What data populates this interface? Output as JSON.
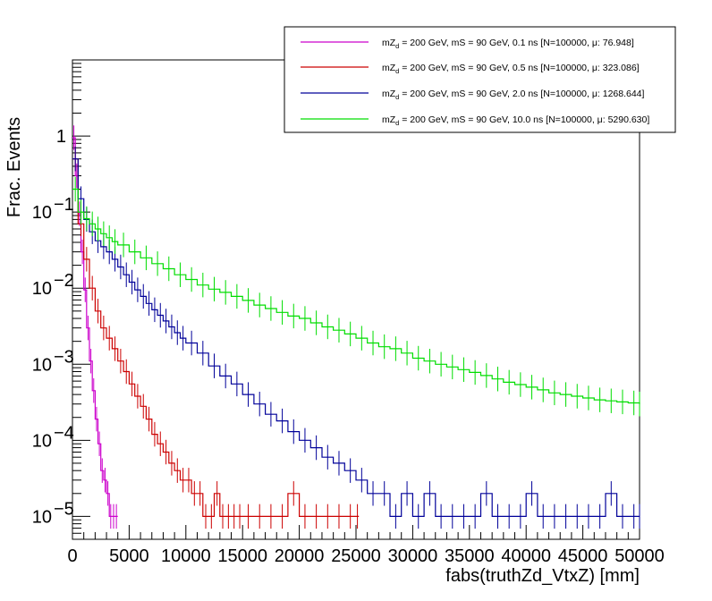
{
  "chart_data": {
    "type": "line",
    "style": "step-histogram",
    "xlabel": "fabs(truthZd_VtxZ) [mm]",
    "ylabel": "Frac. Events",
    "xlim": [
      0,
      50000
    ],
    "ylim": [
      5e-06,
      10
    ],
    "yscale": "log",
    "grid": false,
    "legend_position": "top-right",
    "x_ticks": [
      "0",
      "5000",
      "10000",
      "15000",
      "20000",
      "25000",
      "30000",
      "35000",
      "40000",
      "45000",
      "50000"
    ],
    "y_ticks": [
      {
        "value": 1e-05,
        "base": "10",
        "exp": "−5"
      },
      {
        "value": 0.0001,
        "base": "10",
        "exp": "−4"
      },
      {
        "value": 0.001,
        "base": "10",
        "exp": "−3"
      },
      {
        "value": 0.01,
        "base": "10",
        "exp": "−2"
      },
      {
        "value": 0.1,
        "base": "10",
        "exp": "−1"
      },
      {
        "value": 1,
        "base": "1",
        "exp": ""
      }
    ],
    "bin_width": 250,
    "series": [
      {
        "name": "mZd = 200 GeV, mS = 90 GeV, 0.1 ns [N=100000, μ: 76.948]",
        "legend_pre": "mZ",
        "legend_sub": "d",
        "legend_post": " = 200 GeV, mS = 90 GeV, 0.1 ns [N=100000, μ: 76.948]",
        "color": "#cc00cc",
        "x": [
          0,
          250,
          500,
          750,
          1000,
          1250,
          1500,
          1750,
          2000,
          2250,
          2500,
          2750,
          3000,
          3250,
          3500,
          3750
        ],
        "values": [
          0.95,
          0.3,
          0.095,
          0.03,
          0.0095,
          0.003,
          0.0011,
          0.00045,
          0.00019,
          9e-05,
          4e-05,
          3e-05,
          2e-05,
          1e-05,
          1e-05,
          1e-05
        ],
        "err_up": [
          0,
          0,
          0,
          0,
          0,
          0,
          0,
          0,
          4e-05,
          3e-05,
          2e-05,
          2e-05,
          2e-05,
          1e-05,
          1e-05,
          1e-05
        ]
      },
      {
        "name": "mZd = 200 GeV, mS = 90 GeV, 0.5 ns [N=100000, μ: 323.086]",
        "legend_pre": "mZ",
        "legend_sub": "d",
        "legend_post": " = 200 GeV, mS = 90 GeV, 0.5 ns [N=100000, μ: 323.086]",
        "color": "#cc0000",
        "x": [
          0,
          500,
          1000,
          1500,
          2000,
          2500,
          3000,
          3500,
          4000,
          4500,
          5000,
          5500,
          6000,
          6500,
          7000,
          7500,
          8000,
          8500,
          9000,
          9500,
          10000,
          10500,
          11000,
          11500,
          12000,
          12500,
          13000,
          13500,
          14000,
          14500,
          15000,
          16000,
          17000,
          18000,
          19000,
          20000,
          21000,
          22000,
          23000,
          24000,
          25000
        ],
        "values": [
          0.5,
          0.07,
          0.024,
          0.01,
          0.005,
          0.003,
          0.0022,
          0.0016,
          0.0011,
          0.0008,
          0.00055,
          0.00038,
          0.00028,
          0.00019,
          0.00012,
          9e-05,
          7e-05,
          5e-05,
          4e-05,
          3e-05,
          3e-05,
          2e-05,
          2e-05,
          1e-05,
          1e-05,
          2e-05,
          1e-05,
          1e-05,
          1e-05,
          1e-05,
          1e-05,
          1e-05,
          1e-05,
          1e-05,
          2e-05,
          1e-05,
          1e-05,
          1e-05,
          1e-05,
          1e-05,
          1e-05
        ]
      },
      {
        "name": "mZd = 200 GeV, mS = 90 GeV, 2.0 ns [N=100000, μ: 1268.644]",
        "legend_pre": "mZ",
        "legend_sub": "d",
        "legend_post": " = 200 GeV, mS = 90 GeV, 2.0 ns [N=100000, μ: 1268.644]",
        "color": "#000099",
        "x": [
          0,
          500,
          1000,
          1500,
          2000,
          2500,
          3000,
          3500,
          4000,
          4500,
          5000,
          5500,
          6000,
          6500,
          7000,
          7500,
          8000,
          8500,
          9000,
          9500,
          10000,
          11000,
          12000,
          13000,
          14000,
          15000,
          16000,
          17000,
          18000,
          19000,
          20000,
          21000,
          22000,
          23000,
          24000,
          25000,
          26000,
          27000,
          28000,
          29000,
          30000,
          31000,
          32000,
          33000,
          34000,
          35000,
          36000,
          37000,
          38000,
          39000,
          40000,
          41000,
          42000,
          43000,
          44000,
          45000,
          46000,
          47000,
          48000,
          49000,
          50000
        ],
        "values": [
          0.5,
          0.15,
          0.08,
          0.055,
          0.042,
          0.035,
          0.03,
          0.024,
          0.019,
          0.015,
          0.012,
          0.0095,
          0.0078,
          0.0063,
          0.0052,
          0.0044,
          0.0037,
          0.0031,
          0.0026,
          0.0022,
          0.0019,
          0.0014,
          0.00095,
          0.0007,
          0.00055,
          0.0004,
          0.0003,
          0.00022,
          0.00018,
          0.00013,
          0.0001,
          8e-05,
          6e-05,
          5e-05,
          4e-05,
          3e-05,
          2e-05,
          2e-05,
          1e-05,
          2e-05,
          1e-05,
          2e-05,
          1e-05,
          1e-05,
          1e-05,
          1e-05,
          2e-05,
          1e-05,
          1e-05,
          1e-05,
          2e-05,
          1e-05,
          1e-05,
          1e-05,
          1e-05,
          1e-05,
          1e-05,
          2e-05,
          1e-05,
          1e-05,
          1e-05
        ]
      },
      {
        "name": "mZd = 200 GeV, mS = 90 GeV, 10.0 ns [N=100000, μ: 5290.630]",
        "legend_pre": "mZ",
        "legend_sub": "d",
        "legend_post": " = 200 GeV, mS = 90 GeV, 10.0 ns [N=100000, μ: 5290.630]",
        "color": "#00dd00",
        "x": [
          0,
          500,
          1000,
          1500,
          2000,
          2500,
          3000,
          3500,
          4000,
          5000,
          6000,
          7000,
          8000,
          9000,
          10000,
          11000,
          12000,
          13000,
          14000,
          15000,
          16000,
          17000,
          18000,
          19000,
          20000,
          21000,
          22000,
          23000,
          24000,
          25000,
          26000,
          27000,
          28000,
          29000,
          30000,
          31000,
          32000,
          33000,
          34000,
          35000,
          36000,
          37000,
          38000,
          39000,
          40000,
          41000,
          42000,
          43000,
          44000,
          45000,
          46000,
          47000,
          48000,
          49000,
          50000
        ],
        "values": [
          0.2,
          0.1,
          0.082,
          0.07,
          0.06,
          0.052,
          0.046,
          0.041,
          0.037,
          0.03,
          0.025,
          0.021,
          0.018,
          0.015,
          0.013,
          0.011,
          0.0097,
          0.0088,
          0.0078,
          0.0069,
          0.006,
          0.0054,
          0.0048,
          0.0043,
          0.004,
          0.0035,
          0.0031,
          0.0028,
          0.0025,
          0.0022,
          0.0019,
          0.0017,
          0.0016,
          0.0014,
          0.0012,
          0.0011,
          0.001,
          0.00092,
          0.00085,
          0.00078,
          0.00071,
          0.00064,
          0.00058,
          0.00054,
          0.0005,
          0.00046,
          0.00042,
          0.0004,
          0.00038,
          0.00036,
          0.00034,
          0.00033,
          0.00032,
          0.00031,
          0.0003
        ]
      }
    ]
  }
}
